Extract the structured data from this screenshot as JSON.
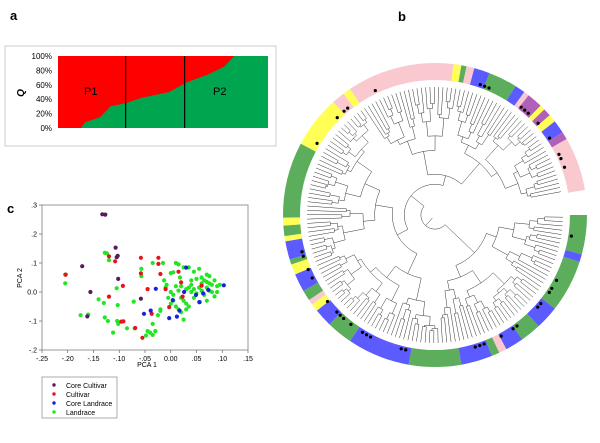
{
  "panels": {
    "a": "a",
    "b": "b",
    "c": "c"
  },
  "colors": {
    "p1": "#ff0000",
    "p2": "#00a550",
    "core_cultivar": "#5a1a5a",
    "cultivar": "#e8141c",
    "core_landrace": "#1a22d8",
    "landrace": "#22e622",
    "band_green": "#5cae5c",
    "band_blue": "#5b5bff",
    "band_pink": "#f9c9cf",
    "band_yellow": "#ffff55",
    "band_purple": "#b060b8"
  },
  "chart_data": [
    {
      "panel": "a",
      "type": "area",
      "ylabel": "Q",
      "y_ticks": [
        "0%",
        "20%",
        "40%",
        "60%",
        "80%",
        "100%"
      ],
      "ylim": [
        0,
        1
      ],
      "group_labels": [
        "P1",
        "P2"
      ],
      "series": [
        {
          "name": "P2",
          "x": [
            0,
            0.11,
            0.13,
            0.2,
            0.25,
            0.33,
            0.4,
            0.53,
            0.61,
            0.72,
            0.79,
            0.84,
            1.0
          ],
          "values": [
            0,
            0,
            0.08,
            0.15,
            0.3,
            0.35,
            0.42,
            0.5,
            0.63,
            0.75,
            0.85,
            1.0,
            1.0
          ]
        }
      ],
      "dividers": [
        0.322,
        0.603
      ]
    },
    {
      "panel": "c",
      "type": "scatter",
      "xlabel": "PCA 1",
      "ylabel": "PCA 2",
      "xlim": [
        -0.25,
        0.15
      ],
      "ylim": [
        -0.2,
        0.3
      ],
      "x_ticks": [
        "-.25",
        "-.20",
        "-.15",
        "-.10",
        "-.05",
        "0.00",
        ".05",
        ".10",
        ".15"
      ],
      "y_ticks": [
        "-.2",
        "-.1",
        "0.0",
        ".1",
        ".2",
        ".3"
      ],
      "legend_position": "below-left",
      "series": [
        {
          "name": "Core Cultivar",
          "points": [
            [
              -0.133,
              0.268
            ],
            [
              -0.127,
              0.267
            ],
            [
              -0.107,
              0.153
            ],
            [
              -0.103,
              0.125
            ],
            [
              -0.105,
              0.12
            ],
            [
              -0.172,
              0.089
            ],
            [
              -0.102,
              0.045
            ],
            [
              -0.156,
              0.0
            ],
            [
              -0.162,
              -0.084
            ],
            [
              -0.058,
              -0.023
            ]
          ]
        },
        {
          "name": "Cultivar",
          "points": [
            [
              -0.12,
              0.123
            ],
            [
              -0.108,
              0.106
            ],
            [
              -0.058,
              0.118
            ],
            [
              -0.024,
              0.118
            ],
            [
              -0.024,
              0.097
            ],
            [
              -0.058,
              0.064
            ],
            [
              -0.02,
              0.062
            ],
            [
              0.015,
              0.07
            ],
            [
              0.02,
              0.033
            ],
            [
              -0.093,
              0.021
            ],
            [
              -0.045,
              0.01
            ],
            [
              -0.12,
              -0.016
            ],
            [
              -0.01,
              0.01
            ],
            [
              -0.204,
              0.06
            ],
            [
              0.06,
              0.022
            ],
            [
              -0.037,
              -0.075
            ],
            [
              -0.092,
              -0.101
            ],
            [
              -0.096,
              -0.102
            ],
            [
              -0.069,
              -0.124
            ],
            [
              -0.055,
              -0.158
            ],
            [
              -0.003,
              -0.052
            ],
            [
              0.023,
              -0.016
            ]
          ]
        },
        {
          "name": "Core Landrace",
          "points": [
            [
              -0.029,
              0.011
            ],
            [
              0.03,
              0.084
            ],
            [
              0.103,
              0.023
            ],
            [
              0.073,
              0.007
            ],
            [
              0.056,
              -0.035
            ],
            [
              -0.052,
              -0.075
            ],
            [
              -0.039,
              -0.064
            ],
            [
              0.017,
              -0.064
            ],
            [
              0.012,
              -0.085
            ],
            [
              -0.003,
              -0.09
            ],
            [
              0.004,
              -0.028
            ],
            [
              0.049,
              -0.01
            ],
            [
              0.026,
              0.0
            ],
            [
              0.063,
              -0.005
            ]
          ]
        },
        {
          "name": "Landrace",
          "points": [
            [
              -0.205,
              0.06
            ],
            [
              -0.205,
              0.03
            ],
            [
              -0.128,
              0.135
            ],
            [
              -0.124,
              0.133
            ],
            [
              -0.12,
              0.11
            ],
            [
              -0.175,
              -0.08
            ],
            [
              -0.16,
              -0.078
            ],
            [
              -0.14,
              -0.025
            ],
            [
              -0.13,
              -0.038
            ],
            [
              -0.105,
              0.013
            ],
            [
              -0.103,
              -0.045
            ],
            [
              -0.128,
              -0.088
            ],
            [
              -0.122,
              -0.1
            ],
            [
              -0.104,
              -0.1
            ],
            [
              -0.102,
              -0.11
            ],
            [
              -0.112,
              -0.14
            ],
            [
              -0.085,
              -0.125
            ],
            [
              -0.072,
              -0.033
            ],
            [
              -0.057,
              0.08
            ],
            [
              -0.057,
              0.055
            ],
            [
              -0.035,
              0.1
            ],
            [
              -0.015,
              0.1
            ],
            [
              -0.035,
              -0.11
            ],
            [
              -0.04,
              -0.14
            ],
            [
              -0.045,
              -0.135
            ],
            [
              -0.048,
              -0.15
            ],
            [
              -0.035,
              -0.148
            ],
            [
              -0.03,
              -0.135
            ],
            [
              -0.02,
              -0.06
            ],
            [
              -0.025,
              -0.08
            ],
            [
              -0.013,
              0.04
            ],
            [
              -0.008,
              0.025
            ],
            [
              0.0,
              0.065
            ],
            [
              0.005,
              0.068
            ],
            [
              0.01,
              0.1
            ],
            [
              0.015,
              0.095
            ],
            [
              0.018,
              0.05
            ],
            [
              0.025,
              0.085
            ],
            [
              0.035,
              0.085
            ],
            [
              0.04,
              0.04
            ],
            [
              0.045,
              0.07
            ],
            [
              0.05,
              0.045
            ],
            [
              0.055,
              0.08
            ],
            [
              0.06,
              0.05
            ],
            [
              0.065,
              0.04
            ],
            [
              0.07,
              0.06
            ],
            [
              0.075,
              0.055
            ],
            [
              0.08,
              0.025
            ],
            [
              0.085,
              0.04
            ],
            [
              0.09,
              0.02
            ],
            [
              0.095,
              0.025
            ],
            [
              0.0,
              0.0
            ],
            [
              0.005,
              -0.01
            ],
            [
              0.01,
              0.02
            ],
            [
              0.015,
              0.005
            ],
            [
              0.02,
              -0.02
            ],
            [
              0.025,
              -0.03
            ],
            [
              0.03,
              -0.04
            ],
            [
              0.035,
              -0.05
            ],
            [
              0.04,
              0.0
            ],
            [
              0.045,
              0.01
            ],
            [
              0.05,
              -0.005
            ],
            [
              0.055,
              0.015
            ],
            [
              0.06,
              0.005
            ],
            [
              0.065,
              -0.01
            ],
            [
              0.07,
              0.015
            ],
            [
              0.075,
              0.005
            ],
            [
              0.08,
              0.0
            ],
            [
              0.085,
              -0.015
            ],
            [
              0.09,
              0.0
            ],
            [
              0.07,
              -0.03
            ],
            [
              0.0,
              -0.04
            ],
            [
              0.005,
              -0.03
            ],
            [
              0.01,
              -0.05
            ],
            [
              0.015,
              -0.06
            ],
            [
              0.02,
              -0.07
            ],
            [
              0.025,
              -0.095
            ],
            [
              0.03,
              -0.06
            ],
            [
              -0.005,
              -0.02
            ],
            [
              -0.01,
              0.015
            ],
            [
              0.04,
              0.025
            ],
            [
              0.035,
              0.015
            ],
            [
              0.045,
              -0.02
            ],
            [
              0.055,
              -0.035
            ],
            [
              0.06,
              0.03
            ],
            [
              0.07,
              0.035
            ],
            [
              0.075,
              0.03
            ],
            [
              0.02,
              0.02
            ],
            [
              0.03,
              0.01
            ],
            [
              -0.07,
              -0.125
            ],
            [
              -0.02,
              -0.065
            ]
          ]
        }
      ]
    },
    {
      "panel": "b",
      "type": "circular-dendrogram",
      "band_colors": [
        "green",
        "blue",
        "pink",
        "yellow",
        "purple"
      ]
    }
  ]
}
